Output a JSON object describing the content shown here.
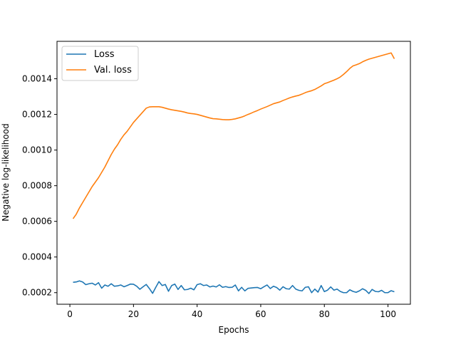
{
  "chart_data": {
    "type": "line",
    "title": "",
    "xlabel": "Epochs",
    "ylabel": "Negative log-likelihood",
    "xlim": [
      -4.05,
      107.05
    ],
    "ylim": [
      0.000135,
      0.00161
    ],
    "xticks": [
      0,
      20,
      40,
      60,
      80,
      100
    ],
    "yticks": [
      0.0002,
      0.0004,
      0.0006,
      0.0008,
      0.001,
      0.0012,
      0.0014
    ],
    "ytick_labels": [
      "0.0002",
      "0.0004",
      "0.0006",
      "0.0008",
      "0.0010",
      "0.0012",
      "0.0014"
    ],
    "grid": false,
    "legend": "top-left",
    "colors": {
      "loss": "#1f77b4",
      "val_loss": "#ff7f0e"
    },
    "series": [
      {
        "name": "Loss",
        "color": "#1f77b4",
        "x": [
          1,
          2,
          3,
          4,
          5,
          6,
          7,
          8,
          9,
          10,
          11,
          12,
          13,
          14,
          15,
          16,
          17,
          18,
          19,
          20,
          21,
          22,
          23,
          24,
          25,
          26,
          27,
          28,
          29,
          30,
          31,
          32,
          33,
          34,
          35,
          36,
          37,
          38,
          39,
          40,
          41,
          42,
          43,
          44,
          45,
          46,
          47,
          48,
          49,
          50,
          51,
          52,
          53,
          54,
          55,
          56,
          57,
          58,
          59,
          60,
          61,
          62,
          63,
          64,
          65,
          66,
          67,
          68,
          69,
          70,
          71,
          72,
          73,
          74,
          75,
          76,
          77,
          78,
          79,
          80,
          81,
          82,
          83,
          84,
          85,
          86,
          87,
          88,
          89,
          90,
          91,
          92,
          93,
          94,
          95,
          96,
          97,
          98,
          99,
          100,
          101,
          102
        ],
        "values": [
          0.000258,
          0.00026,
          0.000266,
          0.00026,
          0.000245,
          0.00025,
          0.000253,
          0.000243,
          0.000256,
          0.000225,
          0.000243,
          0.000236,
          0.00025,
          0.000236,
          0.000238,
          0.000243,
          0.000233,
          0.00024,
          0.000248,
          0.000247,
          0.000236,
          0.000219,
          0.000233,
          0.000246,
          0.000223,
          0.000196,
          0.00023,
          0.000262,
          0.00024,
          0.000246,
          0.000208,
          0.00024,
          0.000248,
          0.000218,
          0.00024,
          0.000216,
          0.000218,
          0.000225,
          0.000216,
          0.000245,
          0.00025,
          0.00024,
          0.000243,
          0.000232,
          0.000237,
          0.000232,
          0.000244,
          0.00023,
          0.000234,
          0.000229,
          0.00023,
          0.000243,
          0.00021,
          0.00023,
          0.00021,
          0.000224,
          0.000226,
          0.000228,
          0.000229,
          0.000222,
          0.000233,
          0.000243,
          0.000223,
          0.000236,
          0.000229,
          0.000214,
          0.000233,
          0.000222,
          0.00022,
          0.00024,
          0.00022,
          0.000213,
          0.00021,
          0.00023,
          0.000233,
          0.0002,
          0.00022,
          0.000203,
          0.00024,
          0.000206,
          0.000214,
          0.000232,
          0.000214,
          0.00022,
          0.000207,
          0.0002,
          0.0002,
          0.000216,
          0.000207,
          0.000202,
          0.00021,
          0.000222,
          0.000213,
          0.000195,
          0.000218,
          0.000207,
          0.000205,
          0.000213,
          0.0002,
          0.0002,
          0.000211,
          0.000205
        ]
      },
      {
        "name": "Val. loss",
        "color": "#ff7f0e",
        "x": [
          1,
          2,
          3,
          4,
          5,
          6,
          7,
          8,
          9,
          10,
          11,
          12,
          13,
          14,
          15,
          16,
          17,
          18,
          19,
          20,
          21,
          22,
          23,
          24,
          25,
          26,
          27,
          28,
          29,
          30,
          31,
          32,
          33,
          34,
          35,
          36,
          37,
          38,
          39,
          40,
          41,
          42,
          43,
          44,
          45,
          46,
          47,
          48,
          49,
          50,
          51,
          52,
          53,
          54,
          55,
          56,
          57,
          58,
          59,
          60,
          61,
          62,
          63,
          64,
          65,
          66,
          67,
          68,
          69,
          70,
          71,
          72,
          73,
          74,
          75,
          76,
          77,
          78,
          79,
          80,
          81,
          82,
          83,
          84,
          85,
          86,
          87,
          88,
          89,
          90,
          91,
          92,
          93,
          94,
          95,
          96,
          97,
          98,
          99,
          100,
          101,
          102
        ],
        "values": [
          0.000615,
          0.00064,
          0.000675,
          0.000705,
          0.000735,
          0.000765,
          0.000795,
          0.00082,
          0.000845,
          0.000875,
          0.000905,
          0.00094,
          0.000975,
          0.001005,
          0.00103,
          0.00106,
          0.001085,
          0.001105,
          0.00113,
          0.001155,
          0.001175,
          0.001195,
          0.001215,
          0.001235,
          0.001242,
          0.001243,
          0.001243,
          0.001243,
          0.00124,
          0.001235,
          0.00123,
          0.001226,
          0.001223,
          0.00122,
          0.001217,
          0.001213,
          0.001208,
          0.001205,
          0.001203,
          0.0012,
          0.001195,
          0.00119,
          0.001185,
          0.00118,
          0.001176,
          0.001175,
          0.001173,
          0.001171,
          0.00117,
          0.00117,
          0.001172,
          0.001175,
          0.00118,
          0.001185,
          0.001192,
          0.0012,
          0.001207,
          0.001215,
          0.001222,
          0.00123,
          0.001237,
          0.001244,
          0.001252,
          0.00126,
          0.001265,
          0.00127,
          0.001278,
          0.001285,
          0.001292,
          0.001298,
          0.001303,
          0.001307,
          0.001314,
          0.001322,
          0.001328,
          0.001333,
          0.00134,
          0.00135,
          0.00136,
          0.001372,
          0.001378,
          0.001385,
          0.001392,
          0.0014,
          0.00141,
          0.001424,
          0.00144,
          0.001458,
          0.001472,
          0.001478,
          0.001485,
          0.001495,
          0.001503,
          0.00151,
          0.001515,
          0.00152,
          0.001525,
          0.00153,
          0.001535,
          0.00154,
          0.001545,
          0.001512
        ]
      }
    ]
  }
}
